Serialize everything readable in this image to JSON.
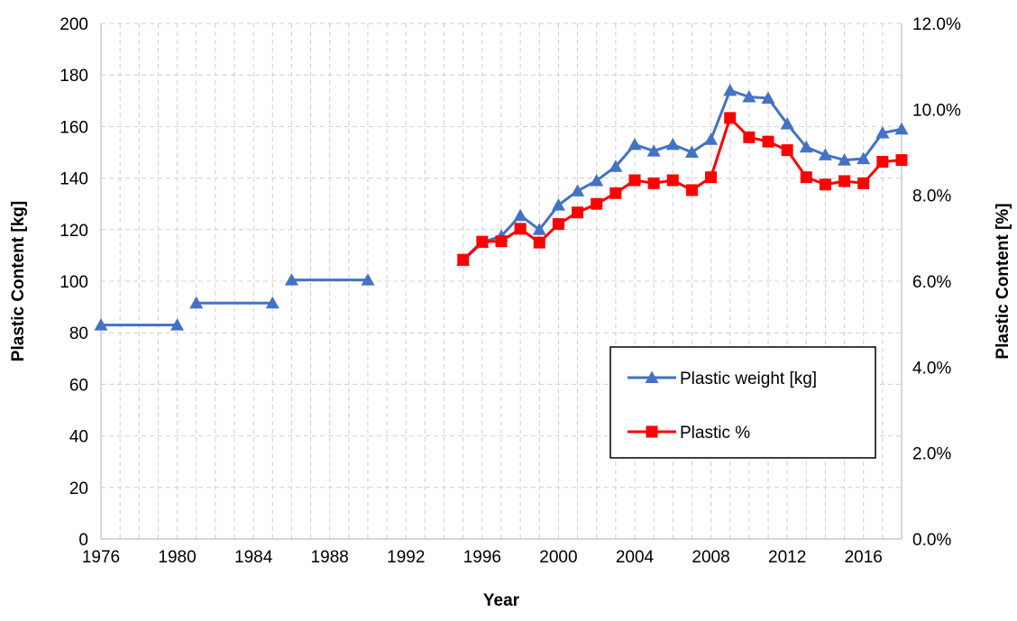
{
  "chart_data": {
    "type": "line",
    "xlabel": "Year",
    "ylabel": "Plastic Content [kg]",
    "y2label": "Plastic Content [%]",
    "xlim": [
      1976,
      2018
    ],
    "ylim": [
      0,
      200
    ],
    "y2lim": [
      0,
      12
    ],
    "xticks": [
      1976,
      1980,
      1984,
      1988,
      1992,
      1996,
      2000,
      2004,
      2008,
      2012,
      2016
    ],
    "yticks": [
      0,
      20,
      40,
      60,
      80,
      100,
      120,
      140,
      160,
      180,
      200
    ],
    "y2ticks": [
      "0.0%",
      "2.0%",
      "4.0%",
      "6.0%",
      "8.0%",
      "10.0%",
      "12.0%"
    ],
    "grid": true,
    "legend_position": "bottom-right",
    "series": [
      {
        "name": "Plastic weight [kg]",
        "axis": "left",
        "color": "#4472C4",
        "marker": "triangle",
        "segments": [
          [
            [
              1976,
              83
            ],
            [
              1980,
              83
            ]
          ],
          [
            [
              1981,
              91.5
            ],
            [
              1985,
              91.5
            ]
          ],
          [
            [
              1986,
              100.5
            ],
            [
              1990,
              100.5
            ]
          ],
          [
            [
              1995,
              108
            ],
            [
              1996,
              115
            ],
            [
              1997,
              117.5
            ],
            [
              1998,
              125.5
            ],
            [
              1999,
              120
            ],
            [
              2000,
              129.5
            ],
            [
              2001,
              135
            ],
            [
              2002,
              139
            ],
            [
              2003,
              144.5
            ],
            [
              2004,
              153
            ],
            [
              2005,
              150.5
            ],
            [
              2006,
              153
            ],
            [
              2007,
              150
            ],
            [
              2008,
              155
            ],
            [
              2009,
              174
            ],
            [
              2010,
              171.5
            ],
            [
              2011,
              171
            ],
            [
              2012,
              161
            ],
            [
              2013,
              152
            ],
            [
              2014,
              149
            ],
            [
              2015,
              147
            ],
            [
              2016,
              147.5
            ],
            [
              2017,
              157.5
            ],
            [
              2018,
              159
            ]
          ]
        ]
      },
      {
        "name": "Plastic %",
        "axis": "right",
        "color": "#FF0000",
        "marker": "square",
        "segments": [
          [
            [
              1995,
              6.5
            ],
            [
              1996,
              6.92
            ],
            [
              1997,
              6.93
            ],
            [
              1998,
              7.22
            ],
            [
              1999,
              6.9
            ],
            [
              2000,
              7.33
            ],
            [
              2001,
              7.6
            ],
            [
              2002,
              7.8
            ],
            [
              2003,
              8.05
            ],
            [
              2004,
              8.35
            ],
            [
              2005,
              8.28
            ],
            [
              2006,
              8.35
            ],
            [
              2007,
              8.12
            ],
            [
              2008,
              8.42
            ],
            [
              2009,
              9.8
            ],
            [
              2010,
              9.35
            ],
            [
              2011,
              9.25
            ],
            [
              2012,
              9.05
            ],
            [
              2013,
              8.42
            ],
            [
              2014,
              8.25
            ],
            [
              2015,
              8.33
            ],
            [
              2016,
              8.28
            ],
            [
              2017,
              8.78
            ],
            [
              2018,
              8.82
            ]
          ]
        ]
      }
    ]
  }
}
